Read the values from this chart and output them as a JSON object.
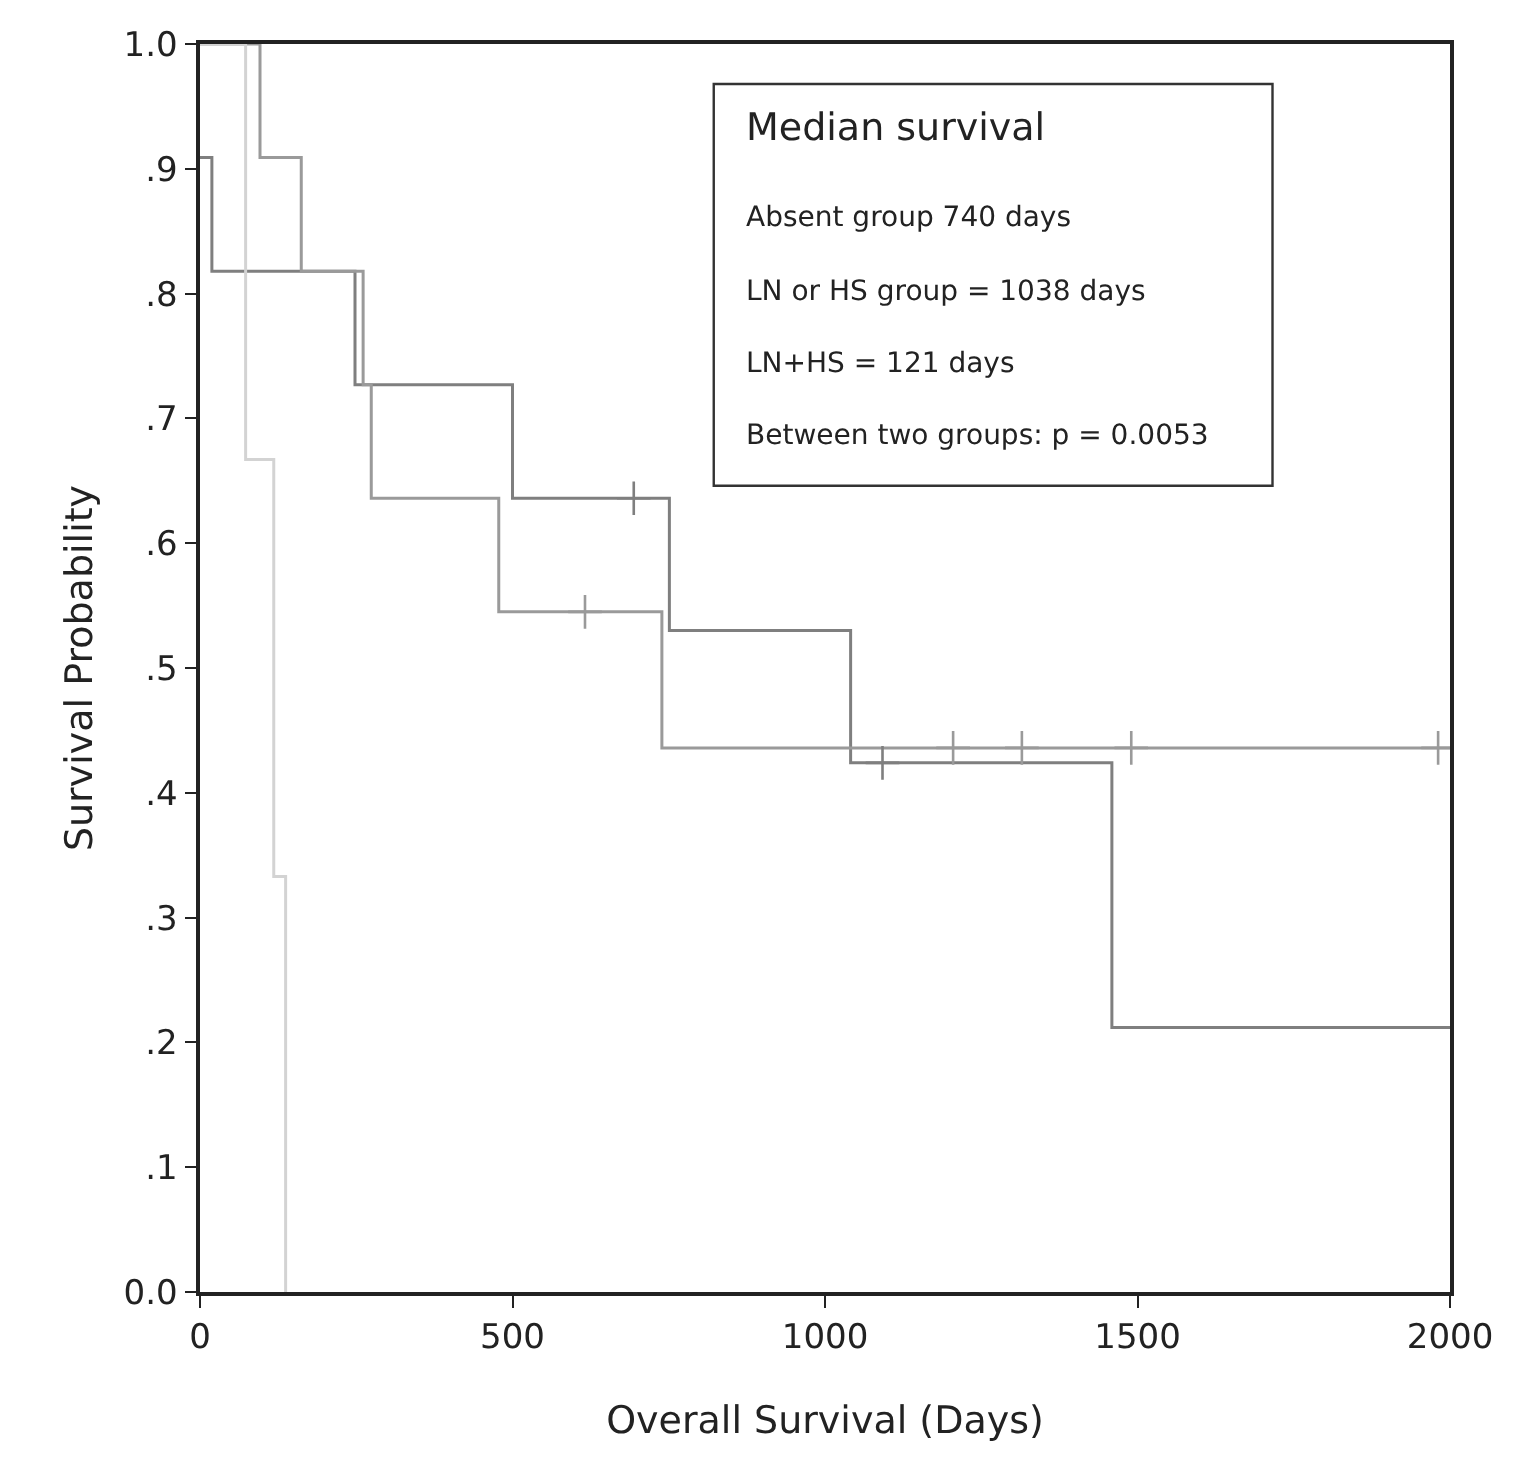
{
  "chart_data": {
    "type": "step",
    "xlabel": "Overall Survival (Days)",
    "ylabel": "Survival Probability",
    "series": [
      {
        "color": "#7f7f7f",
        "x": [
          0,
          19,
          248,
          500,
          751,
          1041,
          1459,
          2000
        ],
        "values": [
          0.909,
          0.818,
          0.727,
          0.636,
          0.53,
          0.424,
          0.212,
          0.212
        ]
      },
      {
        "color": "#9a9a9a",
        "x": [
          0,
          96,
          162,
          261,
          274,
          478,
          739,
          2000
        ],
        "values": [
          1.0,
          0.909,
          0.818,
          0.727,
          0.636,
          0.545,
          0.436,
          0.436
        ]
      },
      {
        "color": "#d3d3d3",
        "x": [
          0,
          73,
          118,
          137
        ],
        "values": [
          1.0,
          0.667,
          0.333,
          0.0
        ]
      },
      {
        "type": "scatter",
        "marker": "cross",
        "color": "#7f7f7f",
        "x": [
          694,
          1092
        ],
        "values": [
          0.636,
          0.424
        ]
      },
      {
        "type": "scatter",
        "marker": "cross",
        "color": "#9a9a9a",
        "x": [
          616,
          1205,
          1315,
          1490,
          1981
        ],
        "values": [
          0.545,
          0.436,
          0.436,
          0.436,
          0.436
        ]
      }
    ],
    "xlim": [
      0,
      2000
    ],
    "xticks": [
      0,
      500,
      1000,
      1500,
      2000
    ],
    "ylim": [
      0,
      1.0
    ],
    "yticks": [
      {
        "value": 0,
        "label": "0.0"
      },
      {
        "value": 0.1,
        "label": ".1"
      },
      {
        "value": 0.2,
        "label": ".2"
      },
      {
        "value": 0.3,
        "label": ".3"
      },
      {
        "value": 0.4,
        "label": ".4"
      },
      {
        "value": 0.5,
        "label": ".5"
      },
      {
        "value": 0.6,
        "label": ".6"
      },
      {
        "value": 0.7,
        "label": ".7"
      },
      {
        "value": 0.8,
        "label": ".8"
      },
      {
        "value": 0.9,
        "label": ".9"
      },
      {
        "value": 1.0,
        "label": "1.0"
      }
    ],
    "annotations": [
      "Median survival",
      "Absent group 740 days",
      "LN or HS group = 1038 days",
      "LN+HS = 121 days",
      "Between two groups: p = 0.0053"
    ]
  }
}
